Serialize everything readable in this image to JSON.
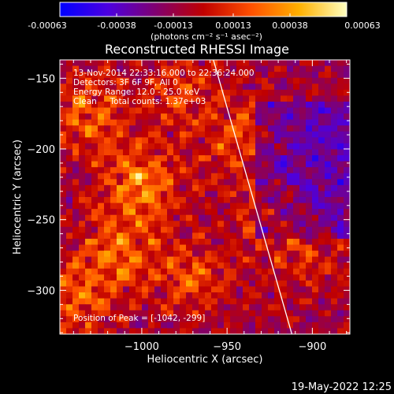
{
  "colorbar": {
    "ticks": [
      "-0.00063",
      "-0.00038",
      "-0.00013",
      "0.00013",
      "0.00038",
      "0.00063"
    ],
    "unit_label": "(photons cm⁻² s⁻¹ asec⁻²)",
    "colors": [
      "#0000ff",
      "#4c00e0",
      "#800070",
      "#c00000",
      "#ff5000",
      "#ffb000",
      "#ffffc0"
    ]
  },
  "chart_data": {
    "type": "heatmap",
    "title": "Reconstructed RHESSI Image",
    "xlabel": "Heliocentric X (arcsec)",
    "ylabel": "Heliocentric Y (arcsec)",
    "xlim": [
      -1048,
      -878
    ],
    "ylim": [
      -331,
      -137
    ],
    "xticks": [
      -1000,
      -950,
      -900
    ],
    "xtick_labels": [
      "−1000",
      "−950",
      "−900"
    ],
    "yticks": [
      -150,
      -200,
      -250,
      -300
    ],
    "ytick_labels": [
      "−150",
      "−200",
      "−250",
      "−300"
    ],
    "value_range": [
      -0.00063,
      0.00063
    ],
    "peak_position": [
      -1042,
      -299
    ],
    "limb_line": [
      [
        -958,
        -137
      ],
      [
        -912,
        -331
      ]
    ],
    "annotations": [
      "13-Nov-2014 22:33:16.000 to 22:36:24.000",
      "Detectors: 3F 6F 9F, All 0",
      "Energy Range: 12.0 - 25.0 keV",
      "Clean     Total counts: 1.37e+03",
      "Position of Peak = [-1042, -299]"
    ]
  },
  "footer": {
    "timestamp": "19-May-2022 12:25"
  }
}
